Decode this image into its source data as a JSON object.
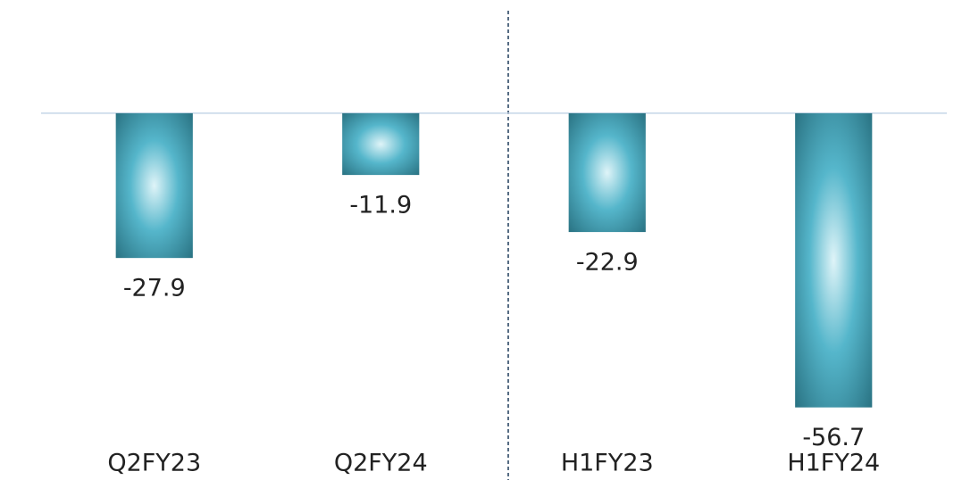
{
  "chart_data": {
    "type": "bar",
    "categories": [
      "Q2FY23",
      "Q2FY24",
      "H1FY23",
      "H1FY24"
    ],
    "values": [
      -27.9,
      -11.9,
      -22.9,
      -56.7
    ],
    "color": "#3a9fb4",
    "ylim": [
      -70,
      20
    ]
  }
}
